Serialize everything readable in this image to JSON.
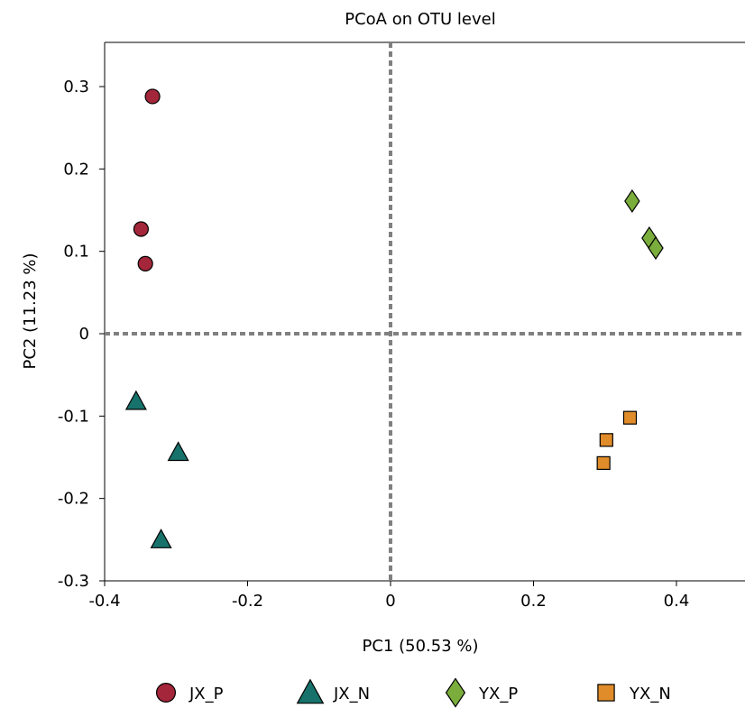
{
  "chart_data": {
    "type": "scatter",
    "title": "PCoA on OTU level",
    "xlabel": "PC1 (50.53 %)",
    "ylabel": "PC2 (11.23 %)",
    "xlim": [
      -0.4,
      0.49
    ],
    "ylim": [
      -0.3,
      0.35
    ],
    "xticks": [
      -0.4,
      -0.2,
      0,
      0.2,
      0.4
    ],
    "xtick_labels": [
      "-0.4",
      "-0.2",
      "0",
      "0.2",
      "0.4"
    ],
    "yticks": [
      -0.3,
      -0.2,
      -0.1,
      0,
      0.1,
      0.2,
      0.3
    ],
    "ytick_labels": [
      "-0.3",
      "-0.2",
      "-0.1",
      "0",
      "0.1",
      "0.2",
      "0.3"
    ],
    "grid": false,
    "reference_lines": {
      "x": 0,
      "y": 0,
      "style": "dashed"
    },
    "legend_position": "bottom",
    "series": [
      {
        "name": "JX_P",
        "marker": "circle",
        "color": "#a3263a",
        "points": [
          [
            -0.333,
            0.288
          ],
          [
            -0.349,
            0.127
          ],
          [
            -0.343,
            0.085
          ]
        ]
      },
      {
        "name": "JX_N",
        "marker": "triangle",
        "color": "#17726b",
        "points": [
          [
            -0.356,
            -0.082
          ],
          [
            -0.297,
            -0.144
          ],
          [
            -0.321,
            -0.25
          ]
        ]
      },
      {
        "name": "YX_P",
        "marker": "diamond",
        "color": "#7aad3b",
        "points": [
          [
            0.338,
            0.161
          ],
          [
            0.362,
            0.116
          ],
          [
            0.371,
            0.104
          ]
        ]
      },
      {
        "name": "YX_N",
        "marker": "square",
        "color": "#e08c2a",
        "points": [
          [
            0.335,
            -0.102
          ],
          [
            0.302,
            -0.129
          ],
          [
            0.298,
            -0.157
          ]
        ]
      }
    ]
  }
}
